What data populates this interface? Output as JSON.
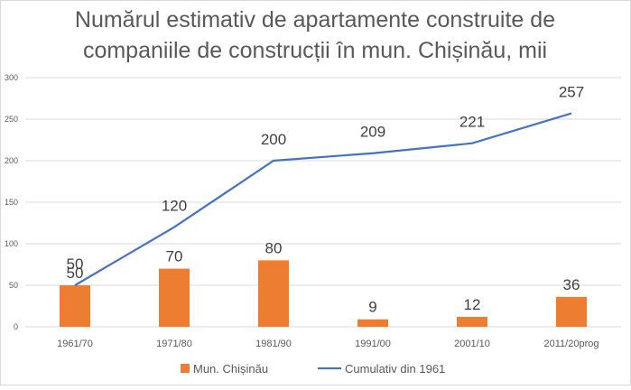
{
  "chart_data": {
    "type": "bar",
    "title": [
      "Numărul estimativ de apartamente construite de",
      "companiile de construcții în mun. Chișinău, mii"
    ],
    "categories": [
      "1961/70",
      "1971/80",
      "1981/90",
      "1991/00",
      "2001/10",
      "2011/20prog"
    ],
    "series": [
      {
        "name": "Mun. Chișinău",
        "type": "bar",
        "color": "#ed7d31",
        "values": [
          50,
          70,
          80,
          9,
          12,
          36
        ]
      },
      {
        "name": "Cumulativ din 1961",
        "type": "line",
        "color": "#4472c4",
        "values": [
          50,
          120,
          200,
          209,
          221,
          257
        ]
      }
    ],
    "ylim": [
      0,
      300
    ],
    "yticks": [
      0,
      50,
      100,
      150,
      200,
      250,
      300
    ],
    "grid": true,
    "legend": "bottom"
  }
}
